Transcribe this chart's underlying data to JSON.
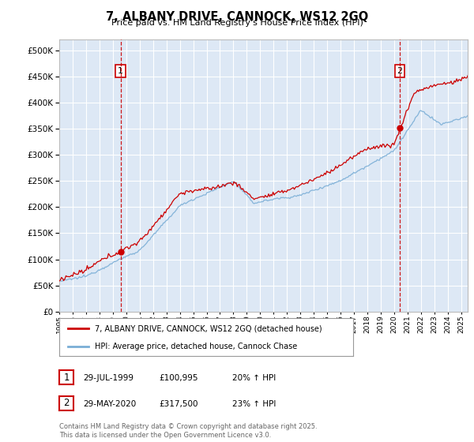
{
  "title": "7, ALBANY DRIVE, CANNOCK, WS12 2GQ",
  "subtitle": "Price paid vs. HM Land Registry's House Price Index (HPI)",
  "legend_line1": "7, ALBANY DRIVE, CANNOCK, WS12 2GQ (detached house)",
  "legend_line2": "HPI: Average price, detached house, Cannock Chase",
  "annotation1_label": "1",
  "annotation1_date": "29-JUL-1999",
  "annotation1_price": "£100,995",
  "annotation1_hpi": "20% ↑ HPI",
  "annotation2_label": "2",
  "annotation2_date": "29-MAY-2020",
  "annotation2_price": "£317,500",
  "annotation2_hpi": "23% ↑ HPI",
  "footnote": "Contains HM Land Registry data © Crown copyright and database right 2025.\nThis data is licensed under the Open Government Licence v3.0.",
  "sale1_year": 1999.58,
  "sale1_price": 100995,
  "sale2_year": 2020.42,
  "sale2_price": 317500,
  "hpi_color": "#7aaed6",
  "price_color": "#cc0000",
  "bg_color": "#dde8f5",
  "grid_color": "#ffffff",
  "annotation_line_color": "#cc0000",
  "ylim_min": 0,
  "ylim_max": 520000,
  "xmin": 1995.0,
  "xmax": 2025.5
}
